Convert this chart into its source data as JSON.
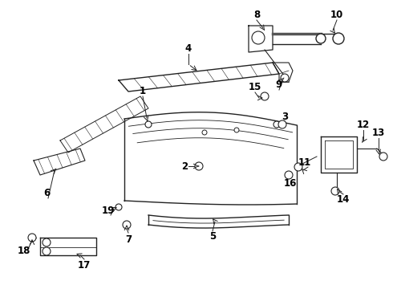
{
  "bg_color": "#ffffff",
  "line_color": "#222222",
  "label_color": "#000000",
  "figsize": [
    4.9,
    3.6
  ],
  "dpi": 100,
  "xlim": [
    0,
    490
  ],
  "ylim": [
    0,
    360
  ]
}
